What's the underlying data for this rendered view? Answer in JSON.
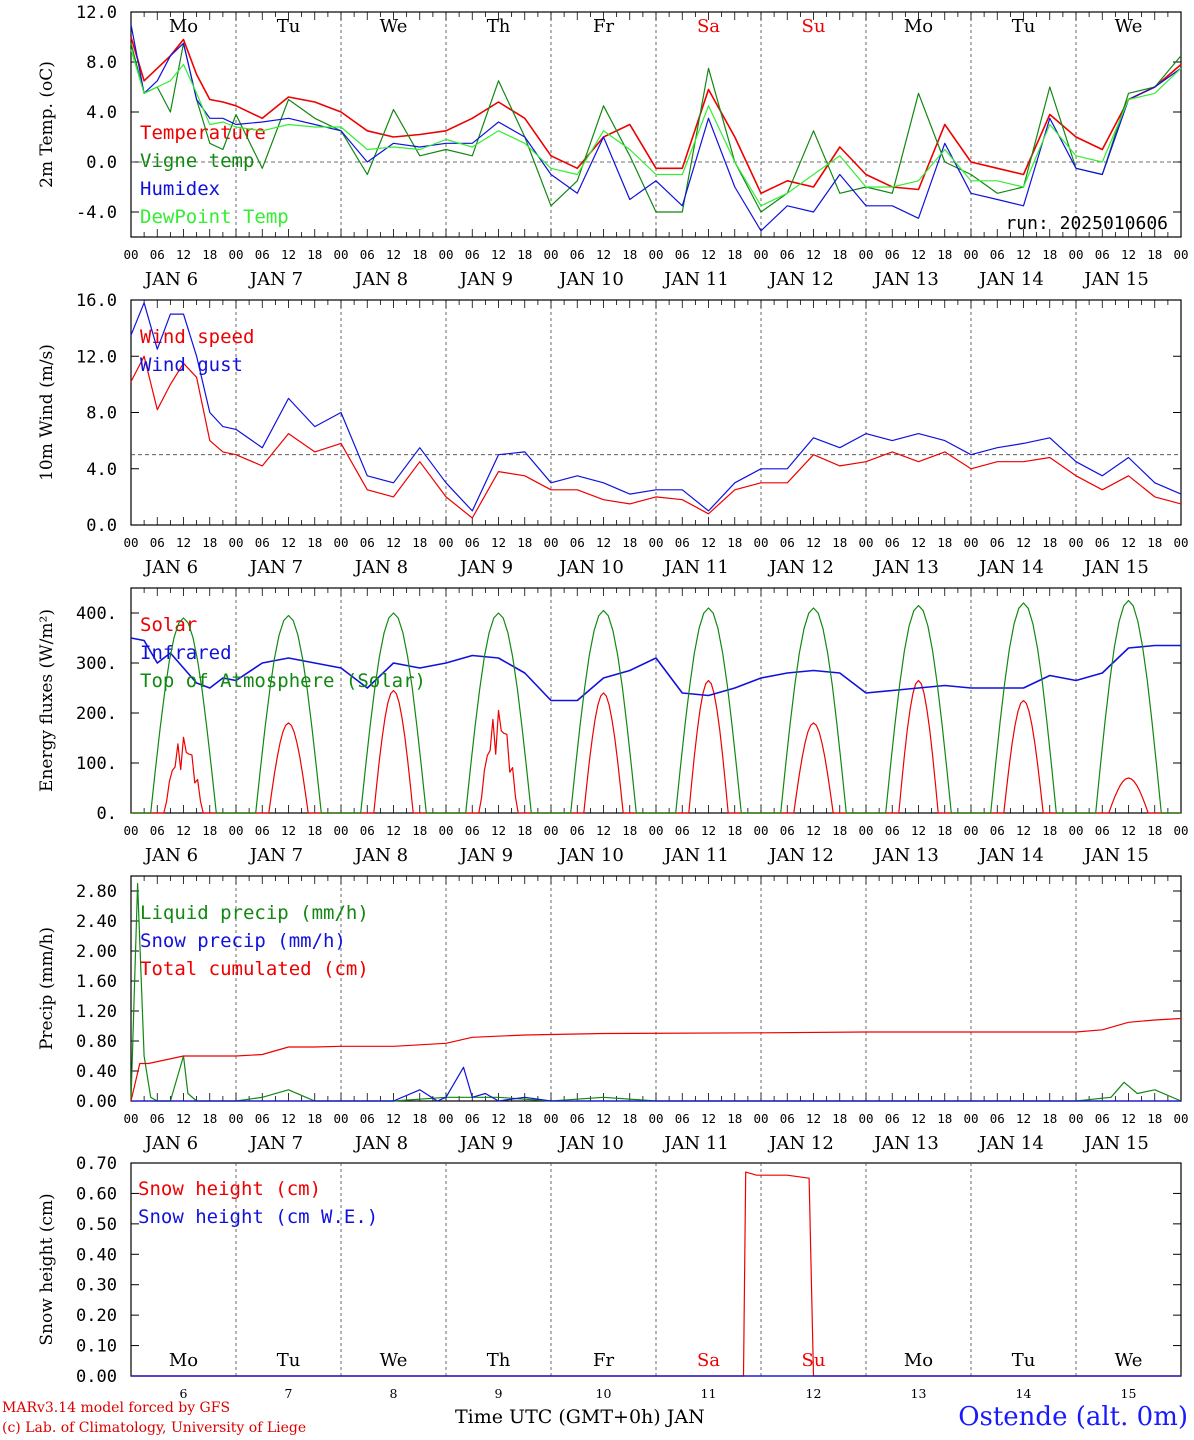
{
  "run_label": "run: 2025010606",
  "footer": {
    "model": "MARv3.14 model forced by GFS",
    "lab": "(c) Lab. of Climatology, University of Liege",
    "xlabel": "Time UTC (GMT+0h) JAN",
    "station": "Ostende (alt. 0m)"
  },
  "colors": {
    "red": "#ee0000",
    "green": "#118811",
    "blue": "#1111dd",
    "lightgreen": "#33ee33",
    "gray": "#555555"
  },
  "chart_data": [
    {
      "type": "line",
      "id": "temp",
      "ylabel": "2m Temp. (oC)",
      "ylim": [
        -6.0,
        12.0
      ],
      "yticks": [
        -4.0,
        0.0,
        4.0,
        8.0,
        12.0
      ],
      "ytick_labels": [
        "-4.0",
        "0.0",
        "4.0",
        "8.0",
        "12.0"
      ],
      "ref_line": 0.0,
      "day_names": [
        "Mo",
        "Tu",
        "We",
        "Th",
        "Fr",
        "Sa",
        "Su",
        "Mo",
        "Tu",
        "We"
      ],
      "weekend_days": [
        "Sa",
        "Su"
      ],
      "hour_ticks": [
        "00",
        "06",
        "12",
        "18"
      ],
      "date_labels": [
        "JAN  6",
        "JAN  7",
        "JAN  8",
        "JAN  9",
        "JAN 10",
        "JAN 11",
        "JAN 12",
        "JAN 13",
        "JAN 14",
        "JAN 15"
      ],
      "series": [
        {
          "name": "Temperature",
          "color": "red",
          "x": [
            0,
            3,
            6,
            9,
            12,
            15,
            18,
            21,
            24,
            30,
            36,
            42,
            48,
            54,
            60,
            66,
            72,
            78,
            84,
            90,
            96,
            102,
            108,
            114,
            120,
            126,
            132,
            138,
            144,
            150,
            156,
            162,
            168,
            174,
            180,
            186,
            192,
            198,
            204,
            210,
            216,
            222,
            228,
            234,
            240
          ],
          "y": [
            10,
            6.5,
            7.5,
            8.5,
            9.8,
            7,
            5,
            4.8,
            4.5,
            3.5,
            5.2,
            4.8,
            4,
            2.5,
            2,
            2.2,
            2.5,
            3.5,
            4.8,
            3.5,
            0.5,
            -0.5,
            2,
            3,
            -0.5,
            -0.5,
            5.8,
            2,
            -2.5,
            -1.5,
            -2,
            1.2,
            -1,
            -2,
            -2.2,
            3,
            0,
            -0.5,
            -1,
            3.8,
            2,
            1,
            5,
            6,
            7.8
          ]
        },
        {
          "name": "Vigne temp",
          "color": "green",
          "x": [
            0,
            3,
            6,
            9,
            12,
            15,
            18,
            21,
            24,
            30,
            36,
            42,
            48,
            54,
            60,
            66,
            72,
            78,
            84,
            90,
            96,
            102,
            108,
            114,
            120,
            126,
            132,
            138,
            144,
            150,
            156,
            162,
            168,
            174,
            180,
            186,
            192,
            198,
            204,
            210,
            216,
            222,
            228,
            234,
            240
          ],
          "y": [
            9.5,
            5.5,
            6,
            4,
            9.5,
            5,
            1.5,
            1,
            3.8,
            -0.5,
            5,
            3.5,
            2.5,
            -1,
            4.2,
            0.5,
            1,
            0.5,
            6.5,
            2,
            -3.5,
            -1.5,
            4.5,
            0.5,
            -4,
            -4,
            7.5,
            0,
            -4,
            -2.5,
            2.5,
            -2.5,
            -2,
            -2.5,
            5.5,
            0,
            -1,
            -2.5,
            -2,
            6,
            -0.5,
            -1,
            5.5,
            6,
            8.5
          ]
        },
        {
          "name": "Humidex",
          "color": "blue",
          "x": [
            0,
            3,
            6,
            9,
            12,
            15,
            18,
            21,
            24,
            30,
            36,
            42,
            48,
            54,
            60,
            66,
            72,
            78,
            84,
            90,
            96,
            102,
            108,
            114,
            120,
            126,
            132,
            138,
            144,
            150,
            156,
            162,
            168,
            174,
            180,
            186,
            192,
            198,
            204,
            210,
            216,
            222,
            228,
            234,
            240
          ],
          "y": [
            11,
            5.5,
            6.5,
            8.5,
            9.5,
            5,
            3.5,
            3.5,
            3,
            3.2,
            3.5,
            3,
            2.5,
            0,
            1.5,
            1.2,
            1.5,
            1.5,
            3.2,
            2,
            -1,
            -2.5,
            2,
            -3,
            -1.5,
            -3.5,
            3.5,
            -2,
            -5.5,
            -3.5,
            -4,
            -1,
            -3.5,
            -3.5,
            -4.5,
            1.5,
            -2.5,
            -3,
            -3.5,
            3.5,
            -0.5,
            -1,
            5,
            6,
            7.5
          ]
        },
        {
          "name": "DewPoint Temp",
          "color": "lightgreen",
          "x": [
            0,
            3,
            6,
            9,
            12,
            15,
            18,
            21,
            24,
            30,
            36,
            42,
            48,
            54,
            60,
            66,
            72,
            78,
            84,
            90,
            96,
            102,
            108,
            114,
            120,
            126,
            132,
            138,
            144,
            150,
            156,
            162,
            168,
            174,
            180,
            186,
            192,
            198,
            204,
            210,
            216,
            222,
            228,
            234,
            240
          ],
          "y": [
            9,
            5.5,
            6,
            6.5,
            7.8,
            5.5,
            3,
            3.2,
            2.8,
            2.5,
            3,
            2.8,
            2.8,
            1,
            1.2,
            1,
            1.8,
            1.2,
            2.5,
            1.5,
            -0.5,
            -1,
            2.5,
            1,
            -1,
            -1,
            4.5,
            0,
            -3.5,
            -2.5,
            -1,
            0.5,
            -2,
            -2,
            -1.5,
            1,
            -1.5,
            -1.5,
            -2,
            3,
            0.5,
            0,
            5,
            5.5,
            7.5
          ]
        }
      ]
    },
    {
      "type": "line",
      "id": "wind",
      "ylabel": "10m Wind (m/s)",
      "ylim": [
        0,
        16.0
      ],
      "yticks": [
        0,
        4.0,
        8.0,
        12.0,
        16.0
      ],
      "ytick_labels": [
        "0.0",
        "4.0",
        "8.0",
        "12.0",
        "16.0"
      ],
      "ref_line": 5.0,
      "hour_ticks": [
        "00",
        "06",
        "12",
        "18"
      ],
      "date_labels": [
        "JAN  6",
        "JAN  7",
        "JAN  8",
        "JAN  9",
        "JAN 10",
        "JAN 11",
        "JAN 12",
        "JAN 13",
        "JAN 14",
        "JAN 15"
      ],
      "series": [
        {
          "name": "Wind speed",
          "color": "red",
          "x": [
            0,
            3,
            6,
            9,
            12,
            15,
            18,
            21,
            24,
            30,
            36,
            42,
            48,
            54,
            60,
            66,
            72,
            78,
            84,
            90,
            96,
            102,
            108,
            114,
            120,
            126,
            132,
            138,
            144,
            150,
            156,
            162,
            168,
            174,
            180,
            186,
            192,
            198,
            204,
            210,
            216,
            222,
            228,
            234,
            240
          ],
          "y": [
            10.2,
            12,
            8.2,
            10,
            11.5,
            10.5,
            6,
            5.2,
            5,
            4.2,
            6.5,
            5.2,
            5.8,
            2.5,
            2,
            4.5,
            2,
            0.5,
            3.8,
            3.5,
            2.5,
            2.5,
            1.8,
            1.5,
            2,
            1.8,
            0.8,
            2.5,
            3,
            3,
            5,
            4.2,
            4.5,
            5.2,
            4.5,
            5.2,
            4,
            4.5,
            4.5,
            4.8,
            3.5,
            2.5,
            3.5,
            2,
            1.5
          ]
        },
        {
          "name": "Wind gust",
          "color": "blue",
          "x": [
            0,
            3,
            6,
            9,
            12,
            15,
            18,
            21,
            24,
            30,
            36,
            42,
            48,
            54,
            60,
            66,
            72,
            78,
            84,
            90,
            96,
            102,
            108,
            114,
            120,
            126,
            132,
            138,
            144,
            150,
            156,
            162,
            168,
            174,
            180,
            186,
            192,
            198,
            204,
            210,
            216,
            222,
            228,
            234,
            240
          ],
          "y": [
            13.5,
            15.8,
            12.5,
            15,
            15,
            12,
            8,
            7,
            6.8,
            5.5,
            9,
            7,
            8,
            3.5,
            3,
            5.5,
            3,
            1,
            5,
            5.2,
            3,
            3.5,
            3,
            2.2,
            2.5,
            2.5,
            1,
            3,
            4,
            4,
            6.2,
            5.5,
            6.5,
            6,
            6.5,
            6,
            5,
            5.5,
            5.8,
            6.2,
            4.5,
            3.5,
            4.8,
            3,
            2.2
          ]
        }
      ]
    },
    {
      "type": "line",
      "id": "energy",
      "ylabel": "Energy fluxes (W/m²)",
      "ylim": [
        0,
        450
      ],
      "yticks": [
        0,
        100,
        200,
        300,
        400
      ],
      "ytick_labels": [
        "0.",
        "100.",
        "200.",
        "300.",
        "400."
      ],
      "hour_ticks": [
        "00",
        "06",
        "12",
        "18"
      ],
      "date_labels": [
        "JAN  6",
        "JAN  7",
        "JAN  8",
        "JAN  9",
        "JAN 10",
        "JAN 11",
        "JAN 12",
        "JAN 13",
        "JAN 14",
        "JAN 15"
      ],
      "solar_peaks": [
        155,
        180,
        245,
        210,
        240,
        265,
        180,
        265,
        225,
        70
      ],
      "toa_peaks": [
        390,
        395,
        400,
        400,
        405,
        410,
        410,
        415,
        420,
        425
      ],
      "series": [
        {
          "name": "Solar",
          "color": "red"
        },
        {
          "name": "Infrared",
          "color": "blue",
          "x": [
            0,
            3,
            6,
            9,
            12,
            15,
            18,
            21,
            24,
            30,
            36,
            42,
            48,
            54,
            60,
            66,
            72,
            78,
            84,
            90,
            96,
            102,
            108,
            114,
            120,
            126,
            132,
            138,
            144,
            150,
            156,
            162,
            168,
            174,
            180,
            186,
            192,
            198,
            204,
            210,
            216,
            222,
            228,
            234,
            240
          ],
          "y": [
            350,
            345,
            300,
            320,
            290,
            260,
            250,
            270,
            265,
            300,
            310,
            300,
            290,
            250,
            300,
            290,
            300,
            315,
            310,
            280,
            225,
            225,
            270,
            285,
            310,
            240,
            235,
            250,
            270,
            280,
            285,
            280,
            240,
            245,
            250,
            255,
            250,
            250,
            250,
            275,
            265,
            280,
            330,
            335,
            335
          ]
        },
        {
          "name": "Top of Atmosphere (Solar)",
          "color": "green"
        }
      ]
    },
    {
      "type": "line",
      "id": "precip",
      "ylabel": "Precip (mm/h)",
      "ylim": [
        0,
        3.0
      ],
      "yticks": [
        0,
        0.4,
        0.8,
        1.2,
        1.6,
        2.0,
        2.4,
        2.8
      ],
      "ytick_labels": [
        "0.00",
        "0.40",
        "0.80",
        "1.20",
        "1.60",
        "2.00",
        "2.40",
        "2.80"
      ],
      "hour_ticks": [
        "00",
        "06",
        "12",
        "18"
      ],
      "date_labels": [
        "JAN  6",
        "JAN  7",
        "JAN  8",
        "JAN  9",
        "JAN 10",
        "JAN 11",
        "JAN 12",
        "JAN 13",
        "JAN 14",
        "JAN 15"
      ],
      "series": [
        {
          "name": "Liquid precip (mm/h)",
          "color": "green",
          "x": [
            0,
            1.5,
            3,
            4.5,
            6,
            9,
            12,
            13,
            15,
            24,
            30,
            36,
            40,
            42,
            48,
            60,
            72,
            84,
            96,
            108,
            120,
            168,
            216,
            224,
            227,
            230,
            234,
            240
          ],
          "y": [
            0,
            2.9,
            0.6,
            0.05,
            0,
            0,
            0.6,
            0.1,
            0,
            0,
            0.05,
            0.15,
            0.05,
            0,
            0,
            0,
            0.05,
            0.05,
            0,
            0.05,
            0,
            0,
            0,
            0.05,
            0.25,
            0.1,
            0.15,
            0
          ]
        },
        {
          "name": "Snow precip (mm/h)",
          "color": "blue",
          "x": [
            0,
            60,
            66,
            70,
            72,
            76,
            78,
            81,
            84,
            90,
            96,
            240
          ],
          "y": [
            0,
            0,
            0.15,
            0,
            0.05,
            0.45,
            0.05,
            0.1,
            0,
            0.05,
            0,
            0
          ]
        },
        {
          "name": "Total cumulated (cm)",
          "color": "red",
          "x": [
            0,
            2,
            4,
            12,
            24,
            30,
            36,
            42,
            48,
            60,
            66,
            72,
            78,
            90,
            108,
            144,
            168,
            216,
            222,
            228,
            234,
            240
          ],
          "y": [
            0,
            0.5,
            0.5,
            0.6,
            0.6,
            0.62,
            0.72,
            0.72,
            0.73,
            0.73,
            0.75,
            0.77,
            0.85,
            0.88,
            0.9,
            0.91,
            0.92,
            0.92,
            0.95,
            1.05,
            1.08,
            1.1
          ]
        }
      ]
    },
    {
      "type": "line",
      "id": "snow",
      "ylabel": "Snow height (cm)",
      "ylim": [
        0,
        0.7
      ],
      "yticks": [
        0,
        0.1,
        0.2,
        0.3,
        0.4,
        0.5,
        0.6,
        0.7
      ],
      "ytick_labels": [
        "0.00",
        "0.10",
        "0.20",
        "0.30",
        "0.40",
        "0.50",
        "0.60",
        "0.70"
      ],
      "day_names": [
        "Mo",
        "Tu",
        "We",
        "Th",
        "Fr",
        "Sa",
        "Su",
        "Mo",
        "Tu",
        "We"
      ],
      "weekend_days": [
        "Sa",
        "Su"
      ],
      "day_numbers": [
        "6",
        "7",
        "8",
        "9",
        "10",
        "11",
        "12",
        "13",
        "14",
        "15"
      ],
      "series": [
        {
          "name": "Snow height (cm)",
          "color": "red",
          "x": [
            0,
            140,
            140.5,
            143,
            150,
            155,
            156,
            240
          ],
          "y": [
            0,
            0,
            0.67,
            0.66,
            0.66,
            0.65,
            0,
            0
          ]
        },
        {
          "name": "Snow height (cm W.E.)",
          "color": "blue",
          "x": [
            0,
            240
          ],
          "y": [
            0,
            0
          ]
        }
      ]
    }
  ]
}
